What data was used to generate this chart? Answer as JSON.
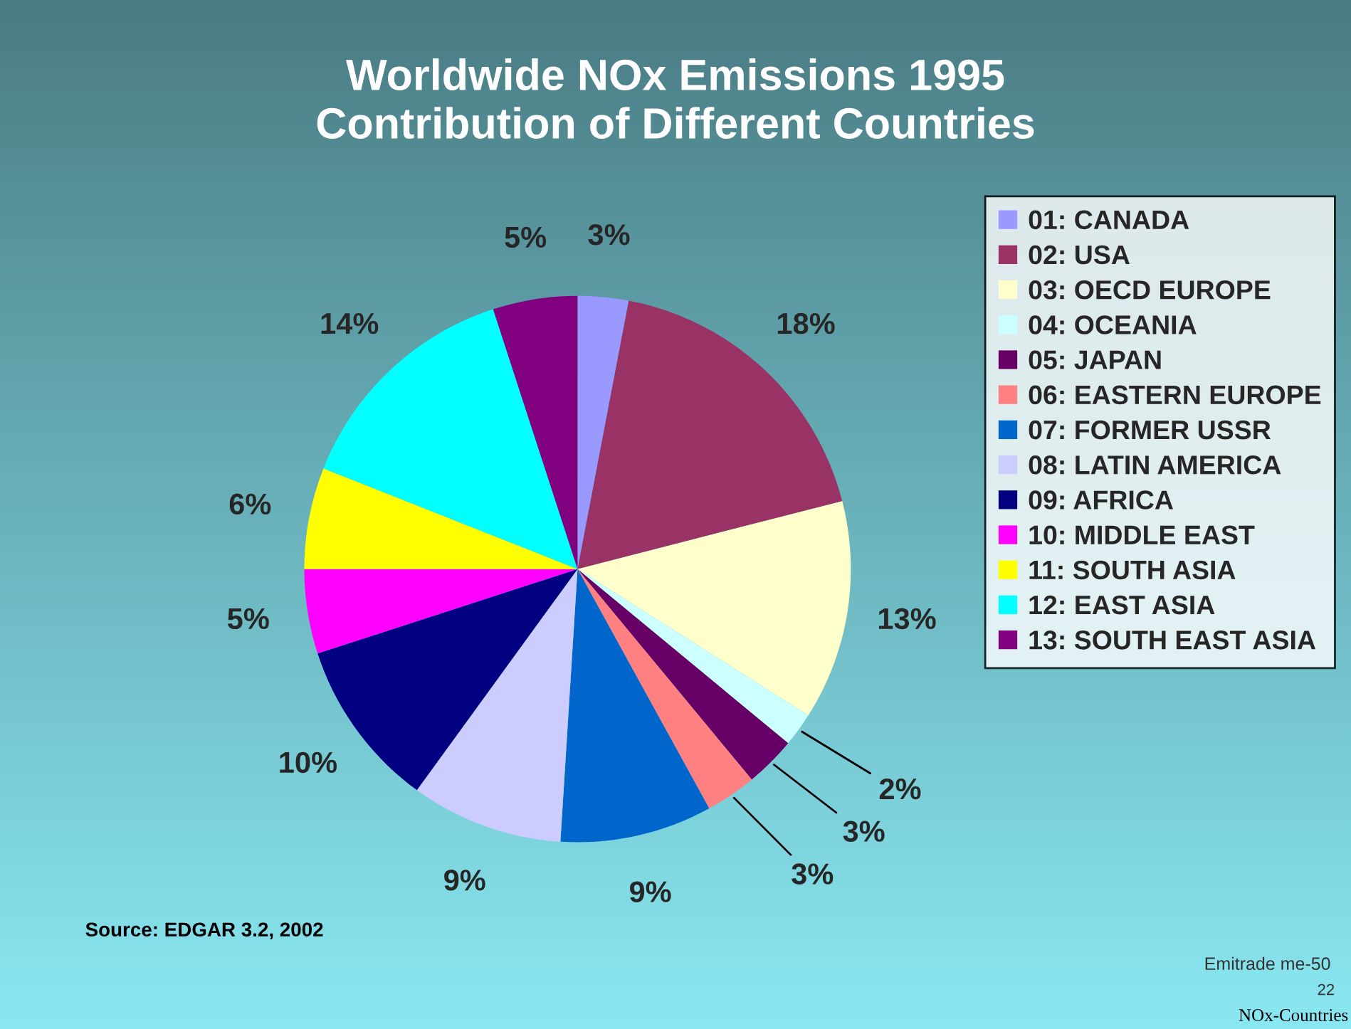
{
  "chart_data": {
    "type": "pie",
    "title": "Worldwide NOx Emissions 1995\nContribution of Different Countries",
    "categories": [
      "01: CANADA",
      "02: USA",
      "03: OECD EUROPE",
      "04: OCEANIA",
      "05: JAPAN",
      "06: EASTERN EUROPE",
      "07: FORMER USSR",
      "08: LATIN AMERICA",
      "09: AFRICA",
      "10: MIDDLE EAST",
      "11: SOUTH ASIA",
      "12: EAST ASIA",
      "13: SOUTH EAST ASIA"
    ],
    "values": [
      3,
      18,
      13,
      2,
      3,
      3,
      9,
      9,
      10,
      5,
      6,
      14,
      5
    ],
    "value_labels": [
      "3%",
      "18%",
      "13%",
      "2%",
      "3%",
      "3%",
      "9%",
      "9%",
      "10%",
      "5%",
      "6%",
      "14%",
      "5%"
    ],
    "colors": [
      "#9999ff",
      "#993366",
      "#ffffcc",
      "#ccffff",
      "#660066",
      "#ff8080",
      "#0066cc",
      "#ccccff",
      "#000080",
      "#ff00ff",
      "#ffff00",
      "#00ffff",
      "#800080"
    ],
    "legend": "right",
    "annotations": [
      "Source: EDGAR 3.2, 2002",
      "Emitrade me-50",
      "22",
      "NOx-Countries"
    ]
  }
}
